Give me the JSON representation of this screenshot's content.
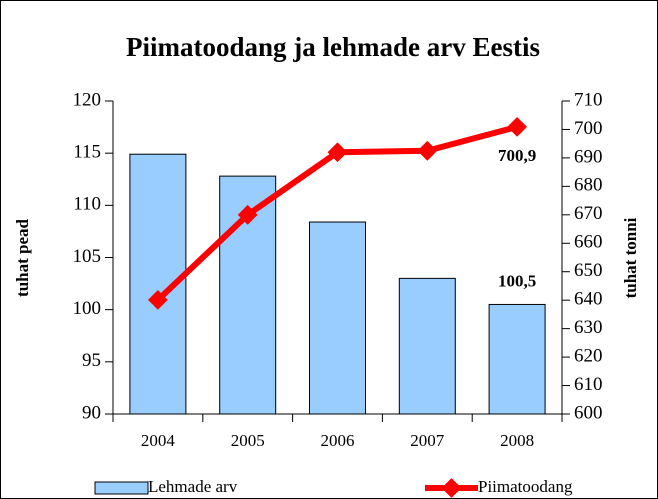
{
  "chart_data": {
    "type": "bar",
    "title": "Piimatoodang ja lehmade arv Eestis",
    "categories": [
      "2004",
      "2005",
      "2006",
      "2007",
      "2008"
    ],
    "ylabel": "tuhat pead",
    "y2label": "tuhat tonni",
    "ylim": [
      90,
      120
    ],
    "yticks": [
      90,
      95,
      100,
      105,
      110,
      115,
      120
    ],
    "y2lim": [
      600,
      710
    ],
    "y2ticks": [
      600,
      610,
      620,
      630,
      640,
      650,
      660,
      670,
      680,
      690,
      700,
      710
    ],
    "legend": "bottom",
    "grid": false,
    "series": [
      {
        "name": "Lehmade arv",
        "type": "bar",
        "color": "#99ccff",
        "values": [
          114.9,
          112.8,
          108.4,
          103.0,
          100.5
        ],
        "value_labels": [
          null,
          null,
          null,
          null,
          "100,5"
        ]
      },
      {
        "name": "Piimatoodang",
        "type": "line",
        "axis": "y2",
        "color": "#ff0000",
        "values": [
          640.1,
          670.0,
          692.0,
          692.5,
          700.9
        ],
        "value_labels": [
          null,
          null,
          null,
          null,
          "700,9"
        ]
      }
    ]
  }
}
